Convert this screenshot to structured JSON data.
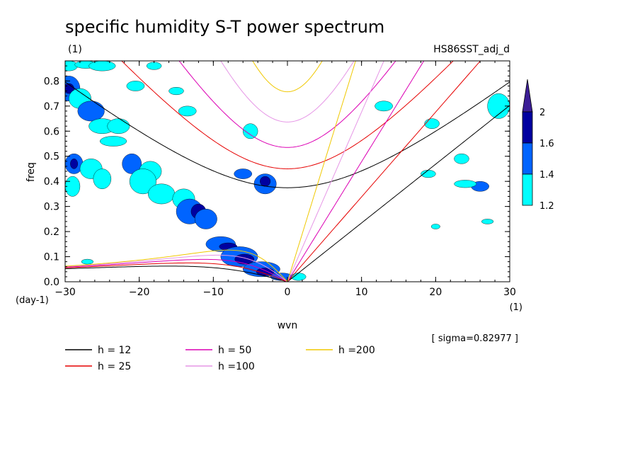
{
  "chart_data": {
    "type": "heatmap",
    "title": "specific humidity S-T power spectrum",
    "subtitle_left": "(1)",
    "subtitle_right": "HS86SST_adj_d",
    "xlabel": "wvn",
    "ylabel": "freq",
    "x_unit": "(1)",
    "y_unit": "(day-1)",
    "xlim": [
      -30,
      30
    ],
    "ylim": [
      0,
      0.88
    ],
    "x_ticks": [
      "−30",
      "−20",
      "−10",
      "0",
      "10",
      "20",
      "30"
    ],
    "x_tick_values": [
      -30,
      -20,
      -10,
      0,
      10,
      20,
      30
    ],
    "y_ticks": [
      "0.0",
      "0.1",
      "0.2",
      "0.3",
      "0.4",
      "0.5",
      "0.6",
      "0.7",
      "0.8"
    ],
    "y_tick_values": [
      0,
      0.1,
      0.2,
      0.3,
      0.4,
      0.5,
      0.6,
      0.7,
      0.8
    ],
    "sigma_text": "[ sigma=0.82977 ]",
    "colorbar": {
      "levels": [
        "1.2",
        "1.4",
        "1.6",
        "2"
      ],
      "level_values": [
        1.2,
        1.4,
        1.6,
        2.0
      ],
      "colors": [
        "#00ffff",
        "#0064ff",
        "#0000a0",
        "#3c1e96"
      ]
    },
    "dispersion_curves": [
      {
        "label": "h = 12",
        "h": 12,
        "color": "#000000"
      },
      {
        "label": "h = 25",
        "h": 25,
        "color": "#e60000"
      },
      {
        "label": "h = 50",
        "h": 50,
        "color": "#dc00b4"
      },
      {
        "label": "h =100",
        "h": 100,
        "color": "#e696e6"
      },
      {
        "label": "h =200",
        "h": 200,
        "color": "#f0c800"
      }
    ],
    "contour_blobs": [
      {
        "x": -29.5,
        "y": 0.86,
        "rx": 1.2,
        "ry": 0.02,
        "level": 1
      },
      {
        "x": -27.2,
        "y": 0.865,
        "rx": 1.5,
        "ry": 0.015,
        "level": 1
      },
      {
        "x": -25.0,
        "y": 0.86,
        "rx": 1.8,
        "ry": 0.02,
        "level": 1
      },
      {
        "x": -29.5,
        "y": 0.77,
        "rx": 1.5,
        "ry": 0.05,
        "level": 2
      },
      {
        "x": -29.5,
        "y": 0.77,
        "rx": 0.7,
        "ry": 0.02,
        "level": 3
      },
      {
        "x": -28.0,
        "y": 0.73,
        "rx": 1.5,
        "ry": 0.04,
        "level": 1
      },
      {
        "x": -26.5,
        "y": 0.68,
        "rx": 1.8,
        "ry": 0.04,
        "level": 2
      },
      {
        "x": -25.0,
        "y": 0.62,
        "rx": 1.8,
        "ry": 0.03,
        "level": 1
      },
      {
        "x": -22.8,
        "y": 0.62,
        "rx": 1.5,
        "ry": 0.03,
        "level": 1
      },
      {
        "x": -28.8,
        "y": 0.47,
        "rx": 1.2,
        "ry": 0.04,
        "level": 2
      },
      {
        "x": -28.8,
        "y": 0.47,
        "rx": 0.5,
        "ry": 0.02,
        "level": 3
      },
      {
        "x": -26.5,
        "y": 0.45,
        "rx": 1.5,
        "ry": 0.04,
        "level": 1
      },
      {
        "x": -29.0,
        "y": 0.38,
        "rx": 1.0,
        "ry": 0.04,
        "level": 1
      },
      {
        "x": -25.0,
        "y": 0.41,
        "rx": 1.2,
        "ry": 0.04,
        "level": 1
      },
      {
        "x": -21.0,
        "y": 0.47,
        "rx": 1.3,
        "ry": 0.04,
        "level": 2
      },
      {
        "x": -18.5,
        "y": 0.44,
        "rx": 1.5,
        "ry": 0.04,
        "level": 1
      },
      {
        "x": -19.5,
        "y": 0.4,
        "rx": 1.8,
        "ry": 0.05,
        "level": 1
      },
      {
        "x": -17.0,
        "y": 0.35,
        "rx": 1.8,
        "ry": 0.04,
        "level": 1
      },
      {
        "x": -14.0,
        "y": 0.33,
        "rx": 1.5,
        "ry": 0.04,
        "level": 1
      },
      {
        "x": -13.2,
        "y": 0.28,
        "rx": 1.8,
        "ry": 0.05,
        "level": 2
      },
      {
        "x": -12.0,
        "y": 0.28,
        "rx": 1.0,
        "ry": 0.03,
        "level": 3
      },
      {
        "x": -11.0,
        "y": 0.25,
        "rx": 1.5,
        "ry": 0.04,
        "level": 2
      },
      {
        "x": -9.0,
        "y": 0.15,
        "rx": 2.0,
        "ry": 0.03,
        "level": 2
      },
      {
        "x": -8.0,
        "y": 0.14,
        "rx": 1.2,
        "ry": 0.015,
        "level": 3
      },
      {
        "x": -6.5,
        "y": 0.1,
        "rx": 2.5,
        "ry": 0.04,
        "level": 2
      },
      {
        "x": -5.8,
        "y": 0.09,
        "rx": 1.3,
        "ry": 0.02,
        "level": 3
      },
      {
        "x": -3.5,
        "y": 0.05,
        "rx": 2.5,
        "ry": 0.03,
        "level": 2
      },
      {
        "x": -3.0,
        "y": 0.04,
        "rx": 1.2,
        "ry": 0.015,
        "level": 3
      },
      {
        "x": -0.8,
        "y": 0.02,
        "rx": 1.5,
        "ry": 0.015,
        "level": 2
      },
      {
        "x": -6.0,
        "y": 0.43,
        "rx": 1.2,
        "ry": 0.02,
        "level": 2
      },
      {
        "x": -3.0,
        "y": 0.39,
        "rx": 1.5,
        "ry": 0.04,
        "level": 2
      },
      {
        "x": -3.0,
        "y": 0.4,
        "rx": 0.7,
        "ry": 0.02,
        "level": 3
      },
      {
        "x": -5.0,
        "y": 0.6,
        "rx": 1.0,
        "ry": 0.03,
        "level": 1
      },
      {
        "x": -13.5,
        "y": 0.68,
        "rx": 1.2,
        "ry": 0.02,
        "level": 1
      },
      {
        "x": 19.5,
        "y": 0.63,
        "rx": 1.0,
        "ry": 0.02,
        "level": 1
      },
      {
        "x": 23.5,
        "y": 0.49,
        "rx": 1.0,
        "ry": 0.02,
        "level": 1
      },
      {
        "x": 26.0,
        "y": 0.38,
        "rx": 1.2,
        "ry": 0.02,
        "level": 2
      },
      {
        "x": 24.0,
        "y": 0.39,
        "rx": 1.5,
        "ry": 0.015,
        "level": 1
      },
      {
        "x": 28.5,
        "y": 0.7,
        "rx": 1.5,
        "ry": 0.05,
        "level": 1
      },
      {
        "x": 13.0,
        "y": 0.7,
        "rx": 1.2,
        "ry": 0.02,
        "level": 1
      },
      {
        "x": 19.0,
        "y": 0.43,
        "rx": 1.0,
        "ry": 0.015,
        "level": 1
      },
      {
        "x": 20.0,
        "y": 0.22,
        "rx": 0.6,
        "ry": 0.01,
        "level": 1
      },
      {
        "x": 1.5,
        "y": 0.02,
        "rx": 1.0,
        "ry": 0.015,
        "level": 1
      },
      {
        "x": -20.5,
        "y": 0.78,
        "rx": 1.2,
        "ry": 0.02,
        "level": 1
      },
      {
        "x": -15.0,
        "y": 0.76,
        "rx": 1.0,
        "ry": 0.015,
        "level": 1
      },
      {
        "x": -23.5,
        "y": 0.56,
        "rx": 1.8,
        "ry": 0.02,
        "level": 1
      },
      {
        "x": -27.0,
        "y": 0.08,
        "rx": 0.8,
        "ry": 0.01,
        "level": 1
      },
      {
        "x": -18.0,
        "y": 0.86,
        "rx": 1.0,
        "ry": 0.015,
        "level": 1
      },
      {
        "x": 27.0,
        "y": 0.24,
        "rx": 0.8,
        "ry": 0.01,
        "level": 1
      }
    ]
  }
}
